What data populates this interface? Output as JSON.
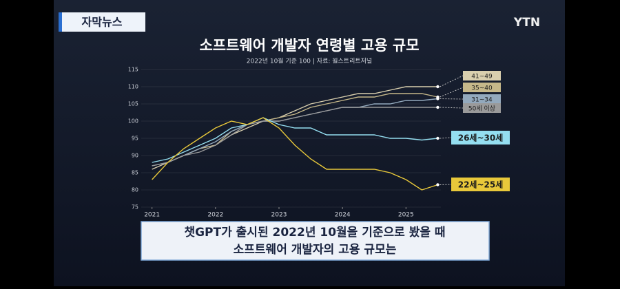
{
  "header": {
    "tag": "자막뉴스",
    "logo": "YTN"
  },
  "chart_data": {
    "type": "line",
    "title": "소프트웨어 개발자 연령별 고용 규모",
    "subtitle": "2022년 10월 기준 100 | 자료: 월스트리트저널",
    "x": [
      2021.0,
      2021.25,
      2021.5,
      2021.75,
      2022.0,
      2022.25,
      2022.5,
      2022.75,
      2023.0,
      2023.25,
      2023.5,
      2023.75,
      2024.0,
      2024.25,
      2024.5,
      2024.75,
      2025.0,
      2025.25,
      2025.5
    ],
    "xlim": [
      2020.83,
      2025.55
    ],
    "xticks": [
      2021,
      2022,
      2023,
      2024,
      2025
    ],
    "ylim": [
      75,
      115
    ],
    "yticks": [
      75,
      80,
      85,
      90,
      95,
      100,
      105,
      110,
      115
    ],
    "grid": true,
    "series": [
      {
        "name": "41~49",
        "color": "#d9cfae",
        "values": [
          86,
          88,
          90,
          92,
          93,
          96,
          98,
          100,
          101,
          103,
          105,
          106,
          107,
          108,
          108,
          109,
          110,
          110,
          110
        ]
      },
      {
        "name": "35~40",
        "color": "#c6b88a",
        "values": [
          87,
          88,
          90,
          92,
          93,
          97,
          99,
          100,
          101,
          102,
          104,
          105,
          106,
          107,
          107,
          108,
          108,
          108,
          107
        ]
      },
      {
        "name": "31~34",
        "color": "#93a9bd",
        "values": [
          87,
          88,
          90,
          92,
          94,
          97,
          99,
          100,
          100,
          101,
          102,
          103,
          104,
          104,
          105,
          105,
          106,
          106,
          106.5
        ]
      },
      {
        "name": "50세 이상",
        "color": "#9a9a9a",
        "values": [
          87,
          88,
          90,
          91,
          93,
          96,
          99,
          100,
          100,
          101,
          102,
          103,
          104,
          104,
          104,
          104,
          104,
          104,
          104
        ]
      },
      {
        "name": "26세~30세",
        "color": "#94def0",
        "values": [
          88,
          89,
          91,
          93,
          95,
          98,
          99,
          101,
          99,
          98,
          98,
          96,
          96,
          96,
          96,
          95,
          95,
          94.5,
          95
        ]
      },
      {
        "name": "22세~25세",
        "color": "#e8c83a",
        "values": [
          83,
          88,
          92,
          95,
          98,
          100,
          99,
          101,
          98,
          93,
          89,
          86,
          86,
          86,
          86,
          85,
          83,
          80,
          81.5
        ]
      }
    ]
  },
  "caption": {
    "lines": [
      "챗GPT가 출시된 2022년 10월을 기준으로 봤을 때",
      "소프트웨어 개발자의 고용 규모는"
    ]
  }
}
